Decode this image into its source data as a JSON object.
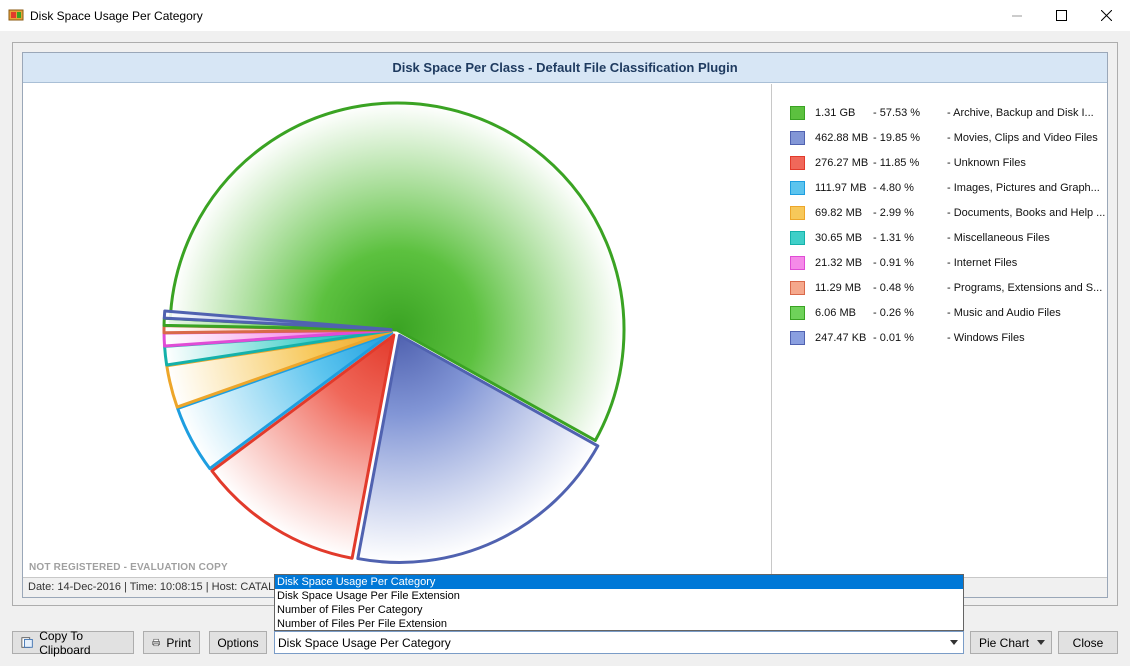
{
  "window": {
    "title": "Disk Space Usage Per Category"
  },
  "panel": {
    "header": "Disk Space Per Class - Default File Classification Plugin",
    "watermark": "NOT REGISTERED - EVALUATION COPY",
    "status": "Date: 14-Dec-2016 | Time: 10:08:15 | Host: CATAL"
  },
  "chart_data": {
    "type": "pie",
    "title": "Disk Space Per Class - Default File Classification Plugin",
    "slices": [
      {
        "size": "1.31 GB",
        "pct": 57.53,
        "pct_label": "57.53 %",
        "name": "Archive, Backup and Disk I...",
        "color": "#5cc13f",
        "edge": "#3aa323"
      },
      {
        "size": "462.88 MB",
        "pct": 19.85,
        "pct_label": "19.85 %",
        "name": "Movies, Clips and Video Files",
        "color": "#8296d6",
        "edge": "#5062b0"
      },
      {
        "size": "276.27 MB",
        "pct": 11.85,
        "pct_label": "11.85 %",
        "name": "Unknown Files",
        "color": "#f0685a",
        "edge": "#e23a2b"
      },
      {
        "size": "111.97 MB",
        "pct": 4.8,
        "pct_label": "4.80 %",
        "name": "Images, Pictures and Graph...",
        "color": "#5cc4ee",
        "edge": "#1e9ee0"
      },
      {
        "size": "69.82 MB",
        "pct": 2.99,
        "pct_label": "2.99 %",
        "name": "Documents, Books and Help ...",
        "color": "#f7c85a",
        "edge": "#eda62a"
      },
      {
        "size": "30.65 MB",
        "pct": 1.31,
        "pct_label": "1.31 %",
        "name": "Miscellaneous Files",
        "color": "#3fcfc8",
        "edge": "#14b1aa"
      },
      {
        "size": "21.32 MB",
        "pct": 0.91,
        "pct_label": "0.91 %",
        "name": "Internet Files",
        "color": "#f58ae8",
        "edge": "#e04cd6"
      },
      {
        "size": "11.29 MB",
        "pct": 0.48,
        "pct_label": "0.48 %",
        "name": "Programs, Extensions and S...",
        "color": "#f5a88c",
        "edge": "#d9694a"
      },
      {
        "size": "6.06 MB",
        "pct": 0.26,
        "pct_label": "0.26 %",
        "name": "Music and Audio Files",
        "color": "#6fd25a",
        "edge": "#3aa323"
      },
      {
        "size": "247.47 KB",
        "pct": 0.01,
        "pct_label": "0.01 %",
        "name": "Windows Files",
        "color": "#8a9fe0",
        "edge": "#5062b0"
      }
    ]
  },
  "toolbar": {
    "copy_label": "Copy To Clipboard",
    "print_label": "Print",
    "options_label": "Options",
    "report_selected": "Disk Space Usage Per Category",
    "chart_type": "Pie Chart",
    "close_label": "Close"
  },
  "dropdown": {
    "options": [
      "Disk Space Usage Per Category",
      "Disk Space Usage Per File Extension",
      "Number of Files Per Category",
      "Number of Files Per File Extension"
    ],
    "selected_index": 0
  }
}
